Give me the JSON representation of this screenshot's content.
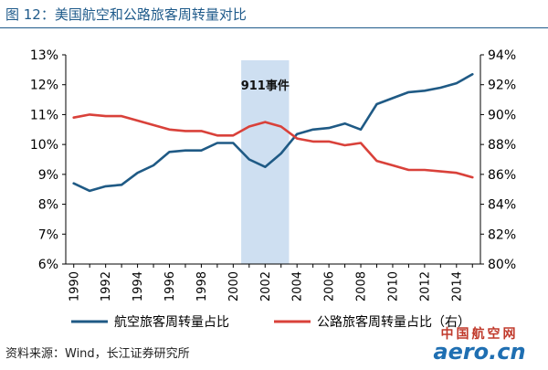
{
  "figure": {
    "title": "图 12：美国航空和公路旅客周转量对比",
    "source": "资料来源：Wind，长江证券研究所"
  },
  "watermark": {
    "top_text": "中国航空网",
    "bottom_text": "aero.cn"
  },
  "chart_data": {
    "type": "line",
    "title": "",
    "x": [
      1990,
      1991,
      1992,
      1993,
      1994,
      1995,
      1996,
      1997,
      1998,
      1999,
      2000,
      2001,
      2002,
      2003,
      2004,
      2005,
      2006,
      2007,
      2008,
      2009,
      2010,
      2011,
      2012,
      2013,
      2014,
      2015
    ],
    "x_tick_labels": [
      "1990",
      "1992",
      "1994",
      "1996",
      "1998",
      "2000",
      "2002",
      "2004",
      "2006",
      "2008",
      "2010",
      "2012",
      "2014"
    ],
    "x_tick_values": [
      1990,
      1992,
      1994,
      1996,
      1998,
      2000,
      2002,
      2004,
      2006,
      2008,
      2010,
      2012,
      2014
    ],
    "xlim": [
      1989.5,
      2015.5
    ],
    "y_left": {
      "ylim": [
        6,
        13
      ],
      "ticks": [
        6,
        7,
        8,
        9,
        10,
        11,
        12,
        13
      ],
      "tick_labels": [
        "6%",
        "7%",
        "8%",
        "9%",
        "10%",
        "11%",
        "12%",
        "13%"
      ]
    },
    "y_right": {
      "ylim": [
        80,
        94
      ],
      "ticks": [
        80,
        82,
        84,
        86,
        88,
        90,
        92,
        94
      ],
      "tick_labels": [
        "80%",
        "82%",
        "84%",
        "86%",
        "88%",
        "90%",
        "92%",
        "94%"
      ]
    },
    "series": [
      {
        "name": "航空旅客周转量占比",
        "axis": "left",
        "color": "#1f5a85",
        "values": [
          8.7,
          8.45,
          8.6,
          8.65,
          9.05,
          9.3,
          9.75,
          9.8,
          9.8,
          10.05,
          10.05,
          9.5,
          9.25,
          9.7,
          10.35,
          10.5,
          10.55,
          10.7,
          10.5,
          11.35,
          11.55,
          11.75,
          11.8,
          11.9,
          12.05,
          12.35
        ]
      },
      {
        "name": "公路旅客周转量占比（右）",
        "axis": "right",
        "color": "#d9413a",
        "values": [
          89.8,
          90.0,
          89.9,
          89.9,
          89.6,
          89.3,
          89.0,
          88.9,
          88.9,
          88.6,
          88.6,
          89.2,
          89.5,
          89.2,
          88.4,
          88.2,
          88.2,
          87.95,
          88.1,
          86.9,
          86.6,
          86.3,
          86.3,
          86.2,
          86.1,
          85.8
        ]
      }
    ],
    "annotations": [
      {
        "text": "911事件",
        "x_start": 2000.5,
        "x_end": 2003.5
      }
    ],
    "grid": false,
    "legend_position": "bottom"
  }
}
